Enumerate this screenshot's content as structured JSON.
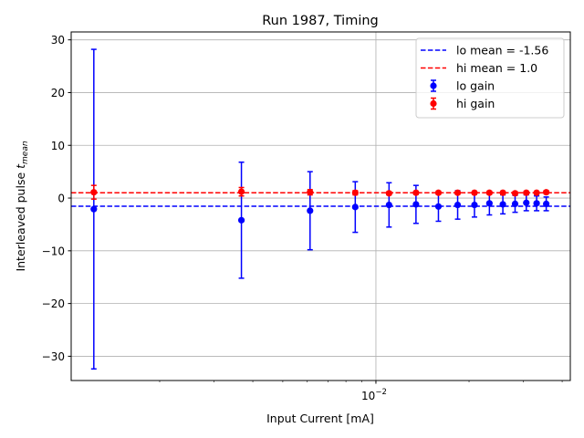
{
  "chart_data": {
    "type": "scatter",
    "title": "Run 1987, Timing",
    "xlabel": "Input Current [mA]",
    "ylabel_main": "Interleaved pulse ",
    "ylabel_t": "t",
    "ylabel_sub": "mean",
    "xscale": "log",
    "xlim": [
      0.001035,
      0.0425
    ],
    "ylim": [
      -34.6,
      31.5
    ],
    "x_major_ticks": [
      {
        "value": 0.01,
        "base": "10",
        "exp": "−2"
      }
    ],
    "x_minor_ticks": [
      0.002,
      0.003,
      0.004,
      0.005,
      0.006,
      0.007,
      0.008,
      0.009,
      0.02,
      0.03,
      0.04
    ],
    "y_ticks": [
      {
        "value": 30,
        "label": "30"
      },
      {
        "value": 20,
        "label": "20"
      },
      {
        "value": 10,
        "label": "10"
      },
      {
        "value": 0,
        "label": "0"
      },
      {
        "value": -10,
        "label": "−10"
      },
      {
        "value": -20,
        "label": "−20"
      },
      {
        "value": -30,
        "label": "−30"
      }
    ],
    "grid": true,
    "legend_placement": "top-right",
    "x": [
      0.001225,
      0.003675,
      0.006125,
      0.008575,
      0.011025,
      0.013475,
      0.015925,
      0.018375,
      0.020825,
      0.023275,
      0.025725,
      0.028175,
      0.030625,
      0.033075,
      0.035525
    ],
    "series": [
      {
        "name": "lo gain",
        "color": "#0000ff",
        "values": [
          -2.1,
          -4.2,
          -2.4,
          -1.7,
          -1.3,
          -1.2,
          -1.6,
          -1.3,
          -1.3,
          -1.0,
          -1.2,
          -1.1,
          -0.9,
          -1.0,
          -1.1
        ],
        "errors": [
          30.3,
          11.0,
          7.4,
          4.8,
          4.2,
          3.6,
          2.8,
          2.7,
          2.3,
          2.2,
          1.8,
          1.6,
          1.5,
          1.4,
          1.3
        ]
      },
      {
        "name": "hi gain",
        "color": "#ff0000",
        "values": [
          1.1,
          1.2,
          1.1,
          1.0,
          0.9,
          1.0,
          1.0,
          1.0,
          1.0,
          1.0,
          1.0,
          0.9,
          1.0,
          1.0,
          1.1
        ],
        "errors": [
          1.3,
          0.8,
          0.5,
          0.4,
          0.3,
          0.3,
          0.3,
          0.3,
          0.3,
          0.3,
          0.3,
          0.3,
          0.3,
          0.3,
          0.3
        ]
      }
    ],
    "hlines": [
      {
        "name": "lo mean = -1.56",
        "value": -1.56,
        "color": "#0000ff"
      },
      {
        "name": "hi mean = 1.0",
        "value": 1.0,
        "color": "#ff0000"
      }
    ]
  }
}
